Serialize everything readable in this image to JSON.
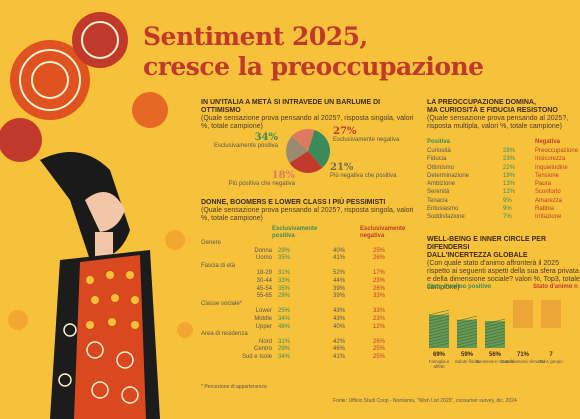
{
  "title_line1": "Sentiment 2025,",
  "title_line2": "cresce la preoccupazione",
  "section1": {
    "heading": "In un'Italia a metà si intravede un barlume di ottimismo",
    "subtitle": "(Quale sensazione prova pensando al 2025?, risposta singola, valori %, totale campione)",
    "pie_labels": {
      "pos": {
        "value": "34%",
        "label": "Esclusivamente positiva"
      },
      "neg": {
        "value": "27%",
        "label": "Esclusivamente negativa"
      },
      "more_neg": {
        "value": "18%",
        "label": "Più positiva che negativa"
      },
      "more_pos": {
        "value": "21%",
        "label": "Più negativa che positiva"
      }
    }
  },
  "section2": {
    "heading": "Donne, boomers e lower class i più pessimisti",
    "subtitle": "(Quale sensazione prova pensando al 2025?, risposta singola, valori %, totale campione)",
    "col_pos": "Esclusivamente positiva",
    "col_neg": "Esclusivamente negativa",
    "groups": [
      {
        "name": "Genere",
        "rows": [
          {
            "label": "Donna",
            "pos": "29%",
            "mid": "40%",
            "neg": "25%"
          },
          {
            "label": "Uomo",
            "pos": "35%",
            "mid": "41%",
            "neg": "26%"
          }
        ]
      },
      {
        "name": "Fascia di età",
        "rows": [
          {
            "label": "18-29",
            "pos": "31%",
            "mid": "52%",
            "neg": "17%"
          },
          {
            "label": "30-44",
            "pos": "33%",
            "mid": "44%",
            "neg": "23%"
          },
          {
            "label": "45-54",
            "pos": "35%",
            "mid": "39%",
            "neg": "26%"
          },
          {
            "label": "55-65",
            "pos": "28%",
            "mid": "39%",
            "neg": "33%"
          }
        ]
      },
      {
        "name": "Classe sociale*",
        "rows": [
          {
            "label": "Lower",
            "pos": "25%",
            "mid": "43%",
            "neg": "33%"
          },
          {
            "label": "Middle",
            "pos": "34%",
            "mid": "43%",
            "neg": "23%"
          },
          {
            "label": "Upper",
            "pos": "48%",
            "mid": "40%",
            "neg": "12%"
          }
        ]
      },
      {
        "name": "Area di residenza",
        "rows": [
          {
            "label": "Nord",
            "pos": "31%",
            "mid": "42%",
            "neg": "26%"
          },
          {
            "label": "Centro",
            "pos": "29%",
            "mid": "46%",
            "neg": "25%"
          },
          {
            "label": "Sud e Isole",
            "pos": "34%",
            "mid": "41%",
            "neg": "25%"
          }
        ]
      }
    ],
    "footnote": "* Percezione di appartenenza"
  },
  "section3": {
    "heading1": "La preoccupazione domina,",
    "heading2": "ma curiosità e fiducia resistono",
    "subtitle": "(Quale sensazione prova pensando al 2025?, risposta multipla, valori %, totale campione)",
    "pos_head": "Positiva",
    "neg_head": "Negativa",
    "pos_rows": [
      {
        "label": "Curiosità",
        "value": "28%"
      },
      {
        "label": "Fiducia",
        "value": "23%"
      },
      {
        "label": "Ottimismo",
        "value": "22%"
      },
      {
        "label": "Determinazione",
        "value": "19%"
      },
      {
        "label": "Ambizione",
        "value": "13%"
      },
      {
        "label": "Serenità",
        "value": "12%"
      },
      {
        "label": "Tenacia",
        "value": "9%"
      },
      {
        "label": "Entusiasmo",
        "value": "9%"
      },
      {
        "label": "Soddisfazione",
        "value": "7%"
      }
    ],
    "neg_rows": [
      "Preoccupazione",
      "Insicurezza",
      "Inquietudine",
      "Tensione",
      "Paura",
      "Sconforto",
      "Amarezza",
      "Rabbia",
      "Irritazione"
    ]
  },
  "section4": {
    "heading1": "Well-being e inner circle per difendersi",
    "heading2": "dall'incertezza globale",
    "subtitle": "(Con quale stato d'animo affronterà il 2025 rispetto ai seguenti aspetti della sua sfera privata e della dimensione sociale? valori %, Top3, totale campione)",
    "pos_head": "Stato d'animo positivo",
    "neg_head": "Stato d'animo n",
    "bars": [
      {
        "value": "69%",
        "label": "Famiglia e affetti"
      },
      {
        "value": "59%",
        "label": "Salute fisica"
      },
      {
        "value": "56%",
        "label": "Benessere mentale"
      },
      {
        "value": "71%",
        "label": "Cambiamenti climatici"
      },
      {
        "value": "7",
        "label": "Tens geopo"
      }
    ]
  },
  "footer": "Fonte: Ufficio Studi Coop - Nomisma, \"Wish List 2025\", consumer survey, dic. 2024",
  "chart_data": [
    {
      "type": "pie",
      "labels": [
        "Esclusivamente positiva",
        "Esclusivamente negativa",
        "Più negativa che positiva",
        "Più positiva che negativa"
      ],
      "values": [
        34,
        27,
        21,
        18
      ],
      "colors": [
        "#3a8a5a",
        "#c0392b",
        "#9a8a70",
        "#e07a5f"
      ]
    },
    {
      "type": "bar",
      "categories": [
        "Famiglia e affetti",
        "Salute fisica",
        "Benessere mentale"
      ],
      "values": [
        69,
        59,
        56
      ]
    }
  ]
}
